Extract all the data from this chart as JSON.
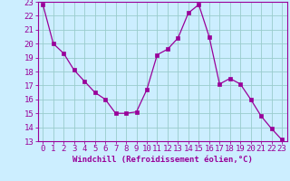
{
  "x": [
    0,
    1,
    2,
    3,
    4,
    5,
    6,
    7,
    8,
    9,
    10,
    11,
    12,
    13,
    14,
    15,
    16,
    17,
    18,
    19,
    20,
    21,
    22,
    23
  ],
  "y": [
    22.8,
    20.0,
    19.3,
    18.1,
    17.3,
    16.5,
    16.0,
    15.0,
    15.0,
    15.1,
    16.7,
    19.2,
    19.6,
    20.4,
    22.2,
    22.8,
    20.5,
    17.1,
    17.5,
    17.1,
    16.0,
    14.8,
    13.9,
    13.1
  ],
  "line_color": "#990099",
  "marker_color": "#990099",
  "bg_color": "#cceeff",
  "grid_color": "#99cccc",
  "xlabel": "Windchill (Refroidissement éolien,°C)",
  "xlabel_color": "#990099",
  "xtick_labels": [
    "0",
    "1",
    "2",
    "3",
    "4",
    "5",
    "6",
    "7",
    "8",
    "9",
    "10",
    "11",
    "12",
    "13",
    "14",
    "15",
    "16",
    "17",
    "18",
    "19",
    "20",
    "21",
    "22",
    "23"
  ],
  "ylim": [
    13,
    23
  ],
  "xlim": [
    -0.5,
    23.5
  ],
  "ytick_vals": [
    13,
    14,
    15,
    16,
    17,
    18,
    19,
    20,
    21,
    22,
    23
  ],
  "tick_color": "#990099",
  "spine_color": "#990099",
  "font_family": "monospace",
  "font_size": 6.5
}
